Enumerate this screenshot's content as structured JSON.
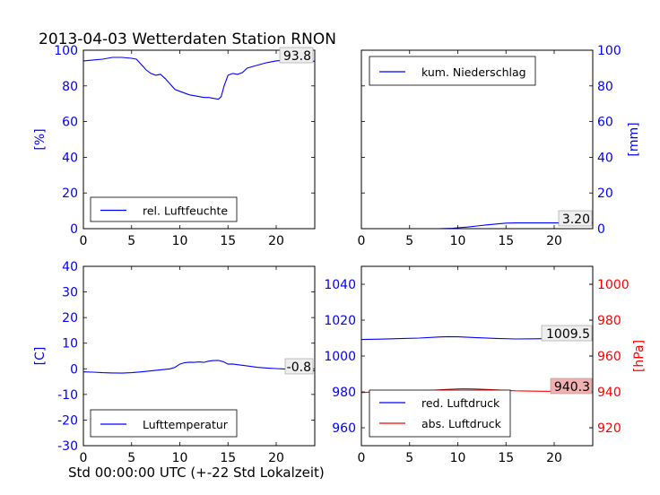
{
  "figure": {
    "title": "2013-04-03 Wetterdaten Station RNON",
    "xlabel": "Std 00:00:00 UTC (+-22 Std Lokalzeit)"
  },
  "colors": {
    "blue": "#0000ff",
    "red": "#ff0000",
    "badge_red": "#f3b0b0",
    "badge_gray": "#eeeeee"
  },
  "chart_data": [
    {
      "id": "humidity",
      "type": "line",
      "xlim": [
        0,
        24
      ],
      "ylim": [
        0,
        100
      ],
      "xticks": [
        0,
        5,
        10,
        15,
        20
      ],
      "yticks": [
        0,
        20,
        40,
        60,
        80,
        100
      ],
      "ylabel": "[%]",
      "legend": "bottom-left",
      "current_label": "93.8",
      "series": [
        {
          "name": "rel. Luftfeuchte",
          "color": "#0000ff",
          "x": [
            0,
            1,
            2,
            3,
            4,
            5,
            5.5,
            6,
            6.5,
            7,
            7.5,
            8,
            8.5,
            9,
            9.5,
            10,
            10.5,
            11,
            11.5,
            12,
            12.5,
            13,
            13.5,
            14,
            14.3,
            14.6,
            15,
            15.5,
            16,
            16.5,
            17,
            18,
            19,
            20,
            21,
            22,
            23,
            24
          ],
          "y": [
            94,
            94.5,
            95,
            96,
            96,
            95.5,
            95,
            92,
            89,
            87,
            86,
            86.5,
            84,
            81,
            78,
            77,
            76,
            75,
            74.5,
            74,
            73.5,
            73.5,
            73,
            72.5,
            74,
            80,
            86,
            87,
            86.5,
            87.5,
            90,
            91.5,
            93,
            94,
            94.5,
            95,
            94,
            93.8
          ]
        }
      ]
    },
    {
      "id": "precipitation",
      "type": "line",
      "xlim": [
        0,
        24
      ],
      "ylim": [
        0,
        100
      ],
      "xticks": [
        0,
        5,
        10,
        15,
        20
      ],
      "yticks": [
        0,
        20,
        40,
        60,
        80,
        100
      ],
      "ylabel": "[mm]",
      "legend": "top-left",
      "current_label": "3.20",
      "series": [
        {
          "name": "kum. Niederschlag",
          "color": "#0000ff",
          "x": [
            0,
            8,
            9.5,
            10,
            11,
            12,
            13,
            14,
            15,
            16,
            18,
            20,
            22,
            24
          ],
          "y": [
            0,
            0,
            0.2,
            0.5,
            0.9,
            1.5,
            2.1,
            2.6,
            3.1,
            3.2,
            3.2,
            3.2,
            3.2,
            3.2
          ]
        }
      ]
    },
    {
      "id": "temperature",
      "type": "line",
      "xlim": [
        0,
        24
      ],
      "ylim": [
        -30,
        40
      ],
      "xticks": [
        0,
        5,
        10,
        15,
        20
      ],
      "yticks": [
        -30,
        -20,
        -10,
        0,
        10,
        20,
        30,
        40
      ],
      "ylabel": "[C]",
      "legend": "bottom-left",
      "current_label": "-0.8",
      "series": [
        {
          "name": "Lufttemperatur",
          "color": "#0000ff",
          "x": [
            0,
            1,
            2,
            3,
            4,
            5,
            6,
            7,
            8,
            9,
            9.5,
            10,
            10.5,
            11,
            11.5,
            12,
            12.5,
            13,
            13.5,
            14,
            14.5,
            15,
            15.5,
            16,
            17,
            18,
            19,
            20,
            21,
            22,
            23,
            24
          ],
          "y": [
            -1.2,
            -1.3,
            -1.5,
            -1.6,
            -1.7,
            -1.5,
            -1.2,
            -0.8,
            -0.4,
            0,
            0.6,
            1.8,
            2.4,
            2.6,
            2.5,
            2.7,
            2.5,
            3,
            3.2,
            3.3,
            2.8,
            1.8,
            1.9,
            1.6,
            1.1,
            0.6,
            0.3,
            0.1,
            -0.1,
            -0.4,
            -0.6,
            -0.8
          ]
        }
      ]
    },
    {
      "id": "pressure",
      "type": "line",
      "xlim": [
        0,
        24
      ],
      "ylim": [
        950,
        1050
      ],
      "y2lim": [
        910,
        1010
      ],
      "xticks": [
        0,
        5,
        10,
        15,
        20
      ],
      "yticks": [
        960,
        980,
        1000,
        1020,
        1040
      ],
      "y2ticks": [
        920,
        940,
        960,
        980,
        1000
      ],
      "y2label": "[hPa]",
      "legend": "bottom-left",
      "current_label": "1009.5",
      "current_label_2": "940.3",
      "series": [
        {
          "name": "red. Luftdruck",
          "color": "#0000ff",
          "axis": "left",
          "x": [
            0,
            2,
            4,
            6,
            8,
            9,
            10,
            12,
            14,
            16,
            18,
            20,
            22,
            24
          ],
          "y": [
            1009.2,
            1009.4,
            1009.7,
            1010,
            1010.6,
            1010.8,
            1010.7,
            1010.2,
            1009.8,
            1009.5,
            1009.6,
            1009.8,
            1009.6,
            1009.5
          ]
        },
        {
          "name": "abs. Luftdruck",
          "color": "#ff0000",
          "axis": "right",
          "x": [
            0,
            1,
            3,
            5,
            7,
            9,
            10.5,
            12,
            14,
            16,
            18,
            20,
            22,
            24
          ],
          "y": [
            939.6,
            939.9,
            940,
            940.2,
            940.8,
            941.4,
            941.8,
            941.6,
            941.1,
            940.6,
            940.4,
            940.3,
            940.4,
            940.3
          ]
        }
      ]
    }
  ]
}
